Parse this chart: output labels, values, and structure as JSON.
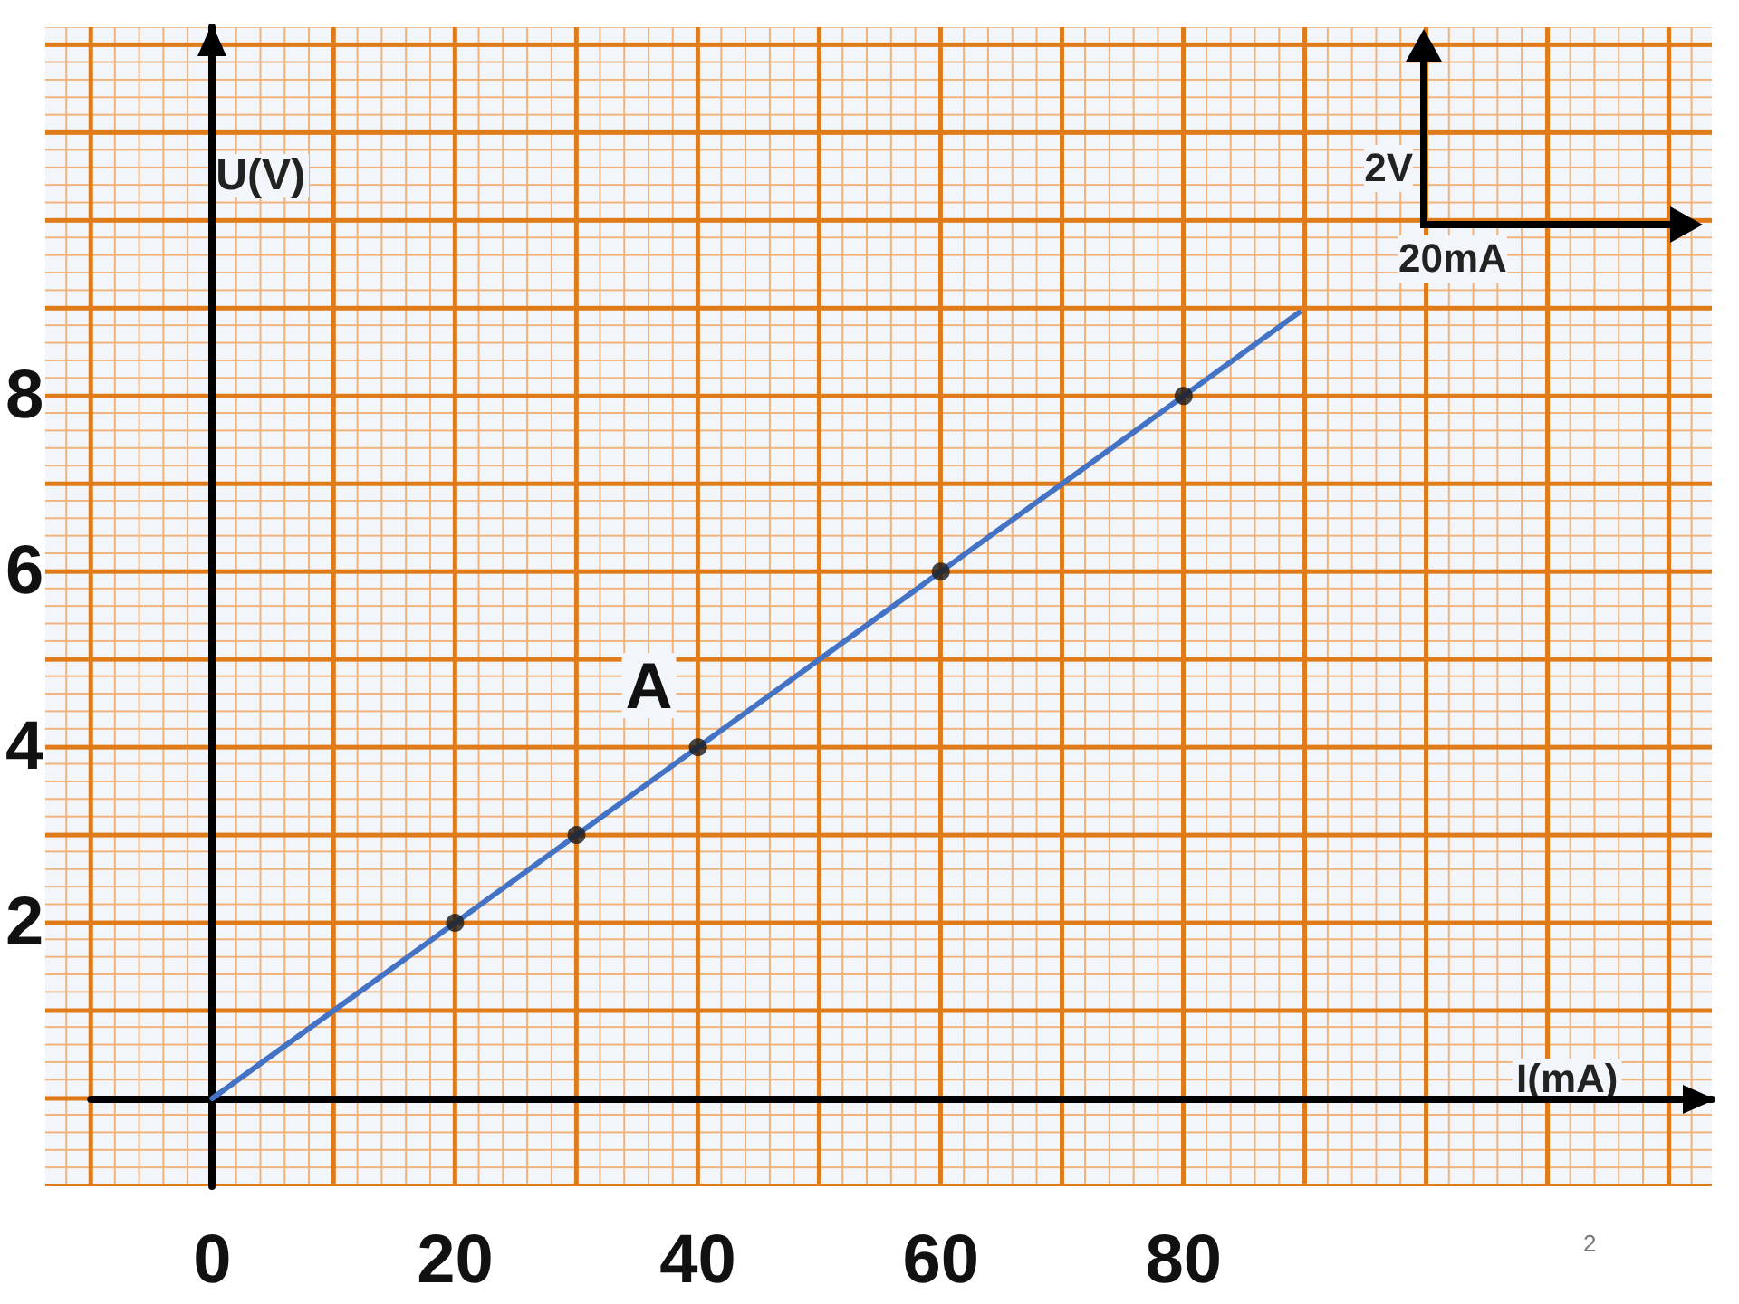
{
  "chart_data": {
    "type": "scatter",
    "xlabel": "I(mA)",
    "ylabel": "U(V)",
    "xlim": [
      -10,
      123.5
    ],
    "ylim": [
      -1,
      12.2
    ],
    "xticks": [
      0,
      20,
      40,
      60,
      80
    ],
    "yticks": [
      2,
      4,
      6,
      8
    ],
    "series": [
      {
        "type": "scatter",
        "color": "#1a1a1a",
        "x": [
          20,
          30,
          40,
          60,
          80
        ],
        "values": [
          2,
          3,
          4,
          6,
          8
        ],
        "marker": "circle"
      },
      {
        "type": "line",
        "color": "#4472c4",
        "x": [
          0,
          89.5
        ],
        "values": [
          0,
          8.95
        ],
        "marker": "none",
        "line_style": "solid"
      }
    ],
    "annotations": [
      {
        "text": "A",
        "x": 40,
        "y": 4
      },
      "2V",
      "20mA",
      "2"
    ],
    "grid": true
  }
}
